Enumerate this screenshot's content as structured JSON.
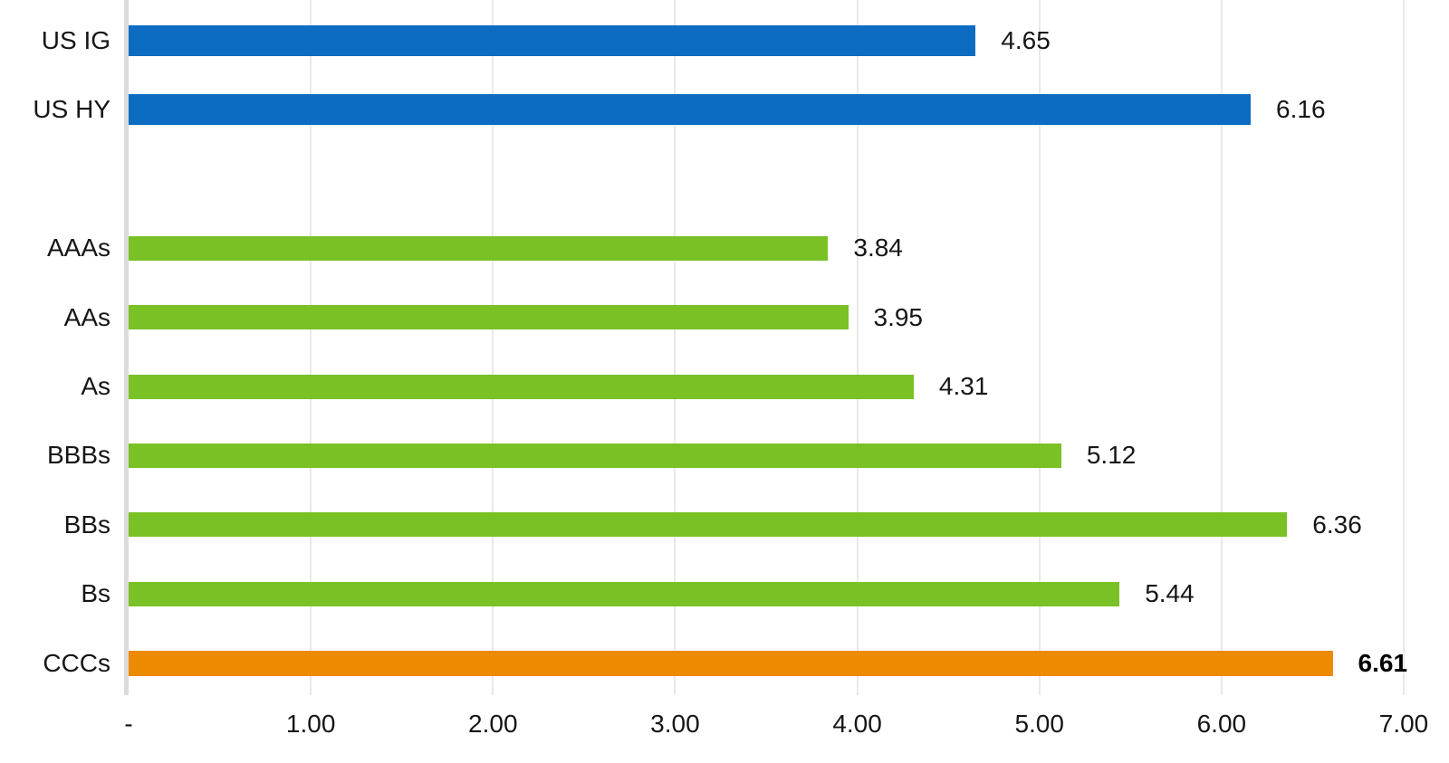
{
  "chart_data": {
    "type": "bar",
    "orientation": "horizontal",
    "title": "",
    "xlabel": "",
    "ylabel": "",
    "xlim": [
      0,
      7
    ],
    "grid": true,
    "x_ticks": [
      "-",
      "1.00",
      "2.00",
      "3.00",
      "4.00",
      "5.00",
      "6.00",
      "7.00"
    ],
    "colors": {
      "us_aggregate": "#0c6cc2",
      "rating_bucket": "#79c125",
      "highlight": "#ec8a00"
    },
    "bars": [
      {
        "label": "US IG",
        "value": 4.65,
        "value_label": "4.65",
        "series": "us_aggregate",
        "bold_value": false
      },
      {
        "label": "US HY",
        "value": 6.16,
        "value_label": "6.16",
        "series": "us_aggregate",
        "bold_value": false
      },
      {
        "label": "AAAs",
        "value": 3.84,
        "value_label": "3.84",
        "series": "rating_bucket",
        "bold_value": false
      },
      {
        "label": "AAs",
        "value": 3.95,
        "value_label": "3.95",
        "series": "rating_bucket",
        "bold_value": false
      },
      {
        "label": "As",
        "value": 4.31,
        "value_label": "4.31",
        "series": "rating_bucket",
        "bold_value": false
      },
      {
        "label": "BBBs",
        "value": 5.12,
        "value_label": "5.12",
        "series": "rating_bucket",
        "bold_value": false
      },
      {
        "label": "BBs",
        "value": 6.36,
        "value_label": "6.36",
        "series": "rating_bucket",
        "bold_value": false
      },
      {
        "label": "Bs",
        "value": 5.44,
        "value_label": "5.44",
        "series": "rating_bucket",
        "bold_value": false
      },
      {
        "label": "CCCs",
        "value": 6.61,
        "value_label": "6.61",
        "series": "highlight",
        "bold_value": true
      }
    ]
  }
}
